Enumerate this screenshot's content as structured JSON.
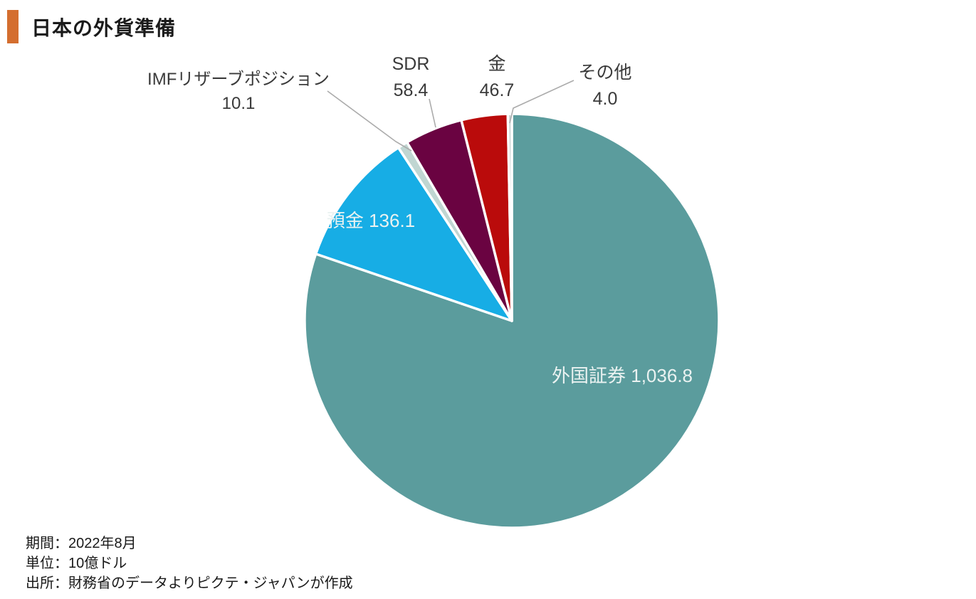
{
  "header": {
    "title": "日本の外貨準備",
    "accent_color": "#D46E2F"
  },
  "chart_data": {
    "type": "pie",
    "title": "日本の外貨準備",
    "period": "2022年8月",
    "unit": "10億ドル",
    "direction": "clockwise",
    "start_angle_deg": 0,
    "total": 1292.1,
    "slices": [
      {
        "key": "foreign-securities",
        "label": "外国証券",
        "value": 1036.8,
        "display_value": "1,036.8",
        "color": "#5B9C9D",
        "label_position": "inside"
      },
      {
        "key": "deposits",
        "label": "預金",
        "value": 136.1,
        "display_value": "136.1",
        "color": "#17ADE5",
        "label_position": "inside"
      },
      {
        "key": "imf-reserve-position",
        "label": "IMFリザーブポジション",
        "value": 10.1,
        "display_value": "10.1",
        "color": "#C0D6D2",
        "label_position": "outside"
      },
      {
        "key": "sdr",
        "label": "SDR",
        "value": 58.4,
        "display_value": "58.4",
        "color": "#6A0341",
        "label_position": "outside"
      },
      {
        "key": "gold",
        "label": "金",
        "value": 46.7,
        "display_value": "46.7",
        "color": "#BA0B0B",
        "label_position": "outside"
      },
      {
        "key": "other",
        "label": "その他",
        "value": 4.0,
        "display_value": "4.0",
        "color": "#C9D2D2",
        "label_position": "outside"
      }
    ]
  },
  "footer": {
    "period": "期間：2022年8月",
    "unit": "単位：10億ドル",
    "source": "出所：財務省のデータよりピクテ・ジャパンが作成"
  }
}
